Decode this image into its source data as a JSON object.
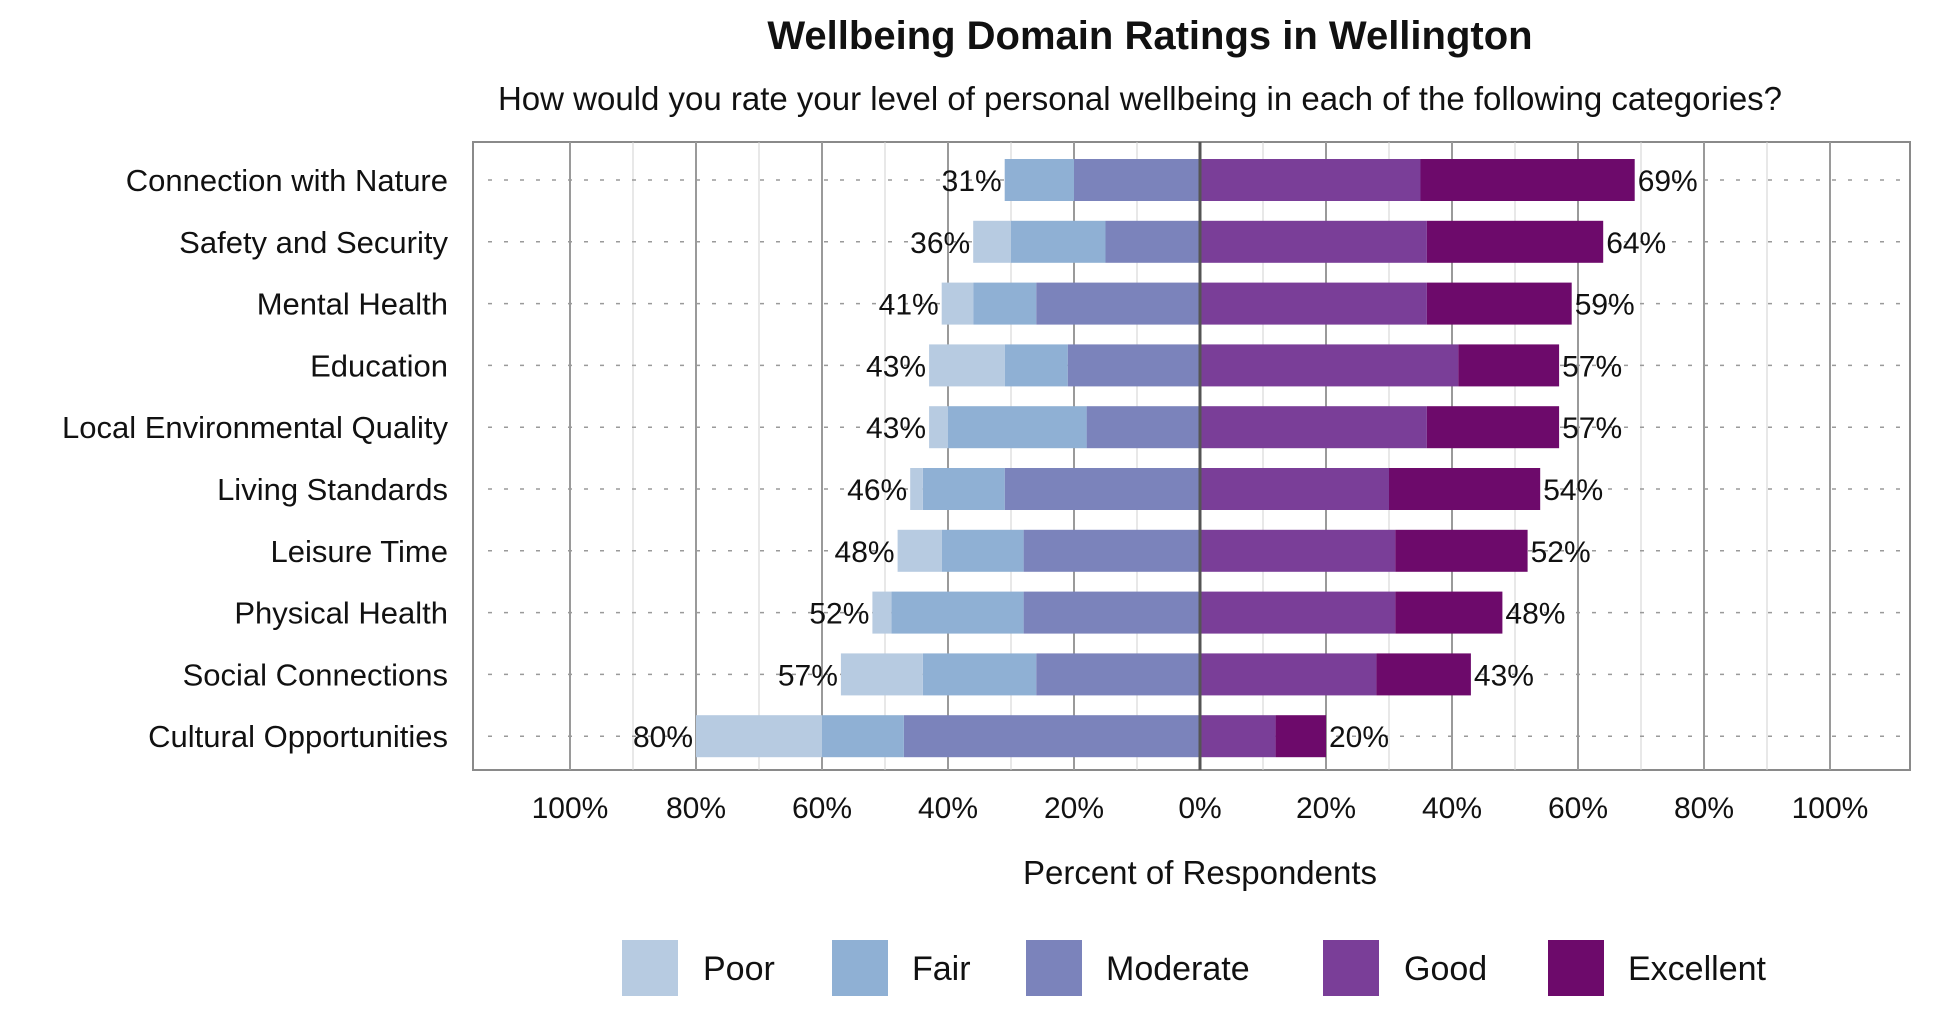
{
  "chart_data": {
    "type": "bar",
    "orientation": "horizontal-diverging",
    "title": "Wellbeing Domain Ratings in Wellington",
    "subtitle": "How would you rate your level of personal wellbeing in each of the following categories?",
    "xlabel": "Percent of Respondents",
    "xlim": [
      -100,
      100
    ],
    "x_ticks": [
      "100%",
      "80%",
      "60%",
      "40%",
      "20%",
      "0%",
      "20%",
      "40%",
      "60%",
      "80%",
      "100%"
    ],
    "grid": true,
    "legend_position": "bottom",
    "series_names": [
      "Poor",
      "Fair",
      "Moderate",
      "Good",
      "Excellent"
    ],
    "colors": [
      "#b7cbe1",
      "#8fb0d4",
      "#7b83bb",
      "#7a3e98",
      "#6d0a6b"
    ],
    "categories": [
      {
        "label": "Connection with Nature",
        "poor": 0,
        "fair": 11,
        "moderate": 20,
        "good": 35,
        "excellent": 34,
        "left_total": "31%",
        "right_total": "69%"
      },
      {
        "label": "Safety and Security",
        "poor": 6,
        "fair": 15,
        "moderate": 15,
        "good": 36,
        "excellent": 28,
        "left_total": "36%",
        "right_total": "64%"
      },
      {
        "label": "Mental Health",
        "poor": 5,
        "fair": 10,
        "moderate": 26,
        "good": 36,
        "excellent": 23,
        "left_total": "41%",
        "right_total": "59%"
      },
      {
        "label": "Education",
        "poor": 12,
        "fair": 10,
        "moderate": 21,
        "good": 41,
        "excellent": 16,
        "left_total": "43%",
        "right_total": "57%"
      },
      {
        "label": "Local Environmental Quality",
        "poor": 3,
        "fair": 22,
        "moderate": 18,
        "good": 36,
        "excellent": 21,
        "left_total": "43%",
        "right_total": "57%"
      },
      {
        "label": "Living Standards",
        "poor": 2,
        "fair": 13,
        "moderate": 31,
        "good": 30,
        "excellent": 24,
        "left_total": "46%",
        "right_total": "54%"
      },
      {
        "label": "Leisure Time",
        "poor": 7,
        "fair": 13,
        "moderate": 28,
        "good": 31,
        "excellent": 21,
        "left_total": "48%",
        "right_total": "52%"
      },
      {
        "label": "Physical Health",
        "poor": 3,
        "fair": 21,
        "moderate": 28,
        "good": 31,
        "excellent": 17,
        "left_total": "52%",
        "right_total": "48%"
      },
      {
        "label": "Social Connections",
        "poor": 13,
        "fair": 18,
        "moderate": 26,
        "good": 28,
        "excellent": 15,
        "left_total": "57%",
        "right_total": "43%"
      },
      {
        "label": "Cultural Opportunities",
        "poor": 20,
        "fair": 13,
        "moderate": 47,
        "good": 12,
        "excellent": 8,
        "left_total": "80%",
        "right_total": "20%"
      }
    ]
  }
}
